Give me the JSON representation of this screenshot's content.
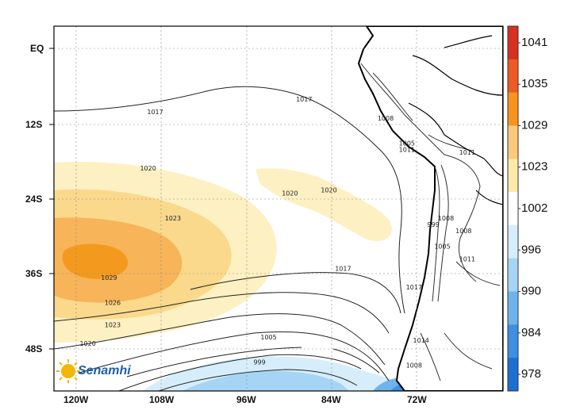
{
  "map": {
    "latitude_labels": [
      "EQ",
      "12S",
      "24S",
      "36S",
      "48S"
    ],
    "longitude_labels": [
      "120W",
      "108W",
      "96W",
      "84W",
      "72W"
    ],
    "contour_labels": [
      {
        "text": "1017",
        "lon": -110,
        "lat": -10.5
      },
      {
        "text": "1017",
        "lon": -89,
        "lat": -8.5
      },
      {
        "text": "1017",
        "lon": -83.5,
        "lat": -35.5
      },
      {
        "text": "1017",
        "lon": -73.5,
        "lat": -38.5
      },
      {
        "text": "1020",
        "lon": -111,
        "lat": -19.5
      },
      {
        "text": "1020",
        "lon": -91,
        "lat": -23.5
      },
      {
        "text": "1020",
        "lon": -85.5,
        "lat": -23
      },
      {
        "text": "1020",
        "lon": -119.5,
        "lat": -47.5
      },
      {
        "text": "1023",
        "lon": -107.5,
        "lat": -27.5
      },
      {
        "text": "1023",
        "lon": -116,
        "lat": -44.5
      },
      {
        "text": "1026",
        "lon": -116,
        "lat": -41
      },
      {
        "text": "1029",
        "lon": -116.5,
        "lat": -37
      },
      {
        "text": "1005",
        "lon": -94,
        "lat": -46.5
      },
      {
        "text": "999",
        "lon": -95,
        "lat": -50.5
      },
      {
        "text": "1008",
        "lon": -77.5,
        "lat": -11.5
      },
      {
        "text": "1005",
        "lon": -74.5,
        "lat": -15.5
      },
      {
        "text": "1011",
        "lon": -74.5,
        "lat": -16.5
      },
      {
        "text": "1011",
        "lon": -66,
        "lat": -17
      },
      {
        "text": "1008",
        "lon": -69,
        "lat": -27.5
      },
      {
        "text": "999",
        "lon": -70.5,
        "lat": -28.5
      },
      {
        "text": "1008",
        "lon": -66.5,
        "lat": -29.5
      },
      {
        "text": "1005",
        "lon": -69.5,
        "lat": -32
      },
      {
        "text": "1011",
        "lon": -66,
        "lat": -34
      },
      {
        "text": "1014",
        "lon": -72.5,
        "lat": -47
      },
      {
        "text": "1008",
        "lon": -73.5,
        "lat": -51
      }
    ]
  },
  "colorbar": {
    "labels": [
      "1041",
      "1035",
      "1029",
      "1023",
      "1002",
      "996",
      "990",
      "984",
      "978"
    ],
    "colors": [
      "#d7301f",
      "#ee5a24",
      "#f7941d",
      "#fbc97a",
      "#fdeaa8",
      "#ffffff",
      "#d6eefb",
      "#a6d4f5",
      "#6fb3ec",
      "#3d8fe0",
      "#1c6fd1"
    ]
  },
  "logo": {
    "text": "Senamhi",
    "sun_color": "#f2b705"
  }
}
